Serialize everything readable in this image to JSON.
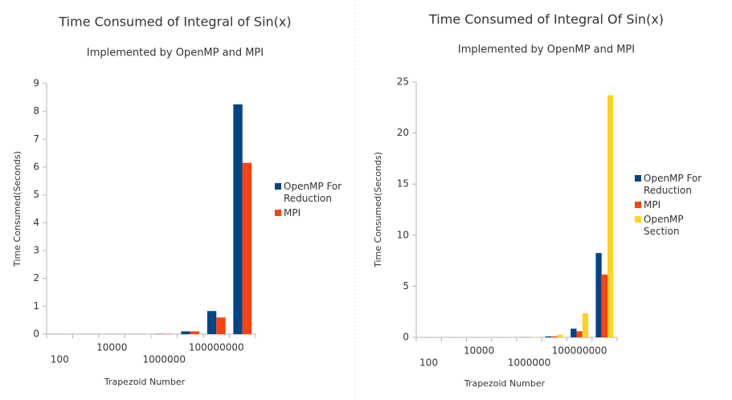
{
  "chart_data": [
    {
      "type": "bar",
      "title": "Time Consumed of Integral of Sin(x)",
      "subtitle": "Implemented by OpenMP and MPI",
      "x_label": "Trapezoid Number",
      "y_label": "Time Consumed(Seconds)",
      "categories": [
        "100",
        null,
        "10000",
        null,
        "1000000",
        null,
        "100000000",
        null
      ],
      "series": [
        {
          "name": "OpenMP For Reduction",
          "color": "#004586",
          "values": [
            0.001,
            0.001,
            0.002,
            0.003,
            0.01,
            0.1,
            0.83,
            8.25
          ]
        },
        {
          "name": "MPI",
          "color": "#ff420e",
          "values": [
            0.001,
            0.001,
            0.002,
            0.003,
            0.01,
            0.1,
            0.6,
            6.15
          ]
        }
      ],
      "ylim": [
        0,
        9
      ],
      "yticks": [
        0,
        1,
        2,
        3,
        4,
        5,
        6,
        7,
        8,
        9
      ],
      "legend": "right"
    },
    {
      "type": "bar",
      "title": "Time Consumed of Integral Of Sin(x)",
      "subtitle": "Implemented by OpenMP and MPI",
      "x_label": "Trapezoid Number",
      "y_label": "Time Consumed(Seconds)",
      "categories": [
        "100",
        null,
        "10000",
        null,
        "1000000",
        null,
        "100000000",
        null
      ],
      "series": [
        {
          "name": "OpenMP For Reduction",
          "color": "#004586",
          "values": [
            0.001,
            0.001,
            0.002,
            0.003,
            0.01,
            0.1,
            0.85,
            8.25
          ]
        },
        {
          "name": "MPI",
          "color": "#ff420e",
          "values": [
            0.001,
            0.001,
            0.002,
            0.003,
            0.01,
            0.1,
            0.6,
            6.15
          ]
        },
        {
          "name": "OpenMP Section",
          "color": "#ffd320",
          "values": [
            0.001,
            0.001,
            0.002,
            0.004,
            0.03,
            0.25,
            2.35,
            23.7
          ]
        }
      ],
      "ylim": [
        0,
        25
      ],
      "yticks": [
        0,
        5,
        10,
        15,
        20,
        25
      ],
      "legend": "right"
    }
  ]
}
